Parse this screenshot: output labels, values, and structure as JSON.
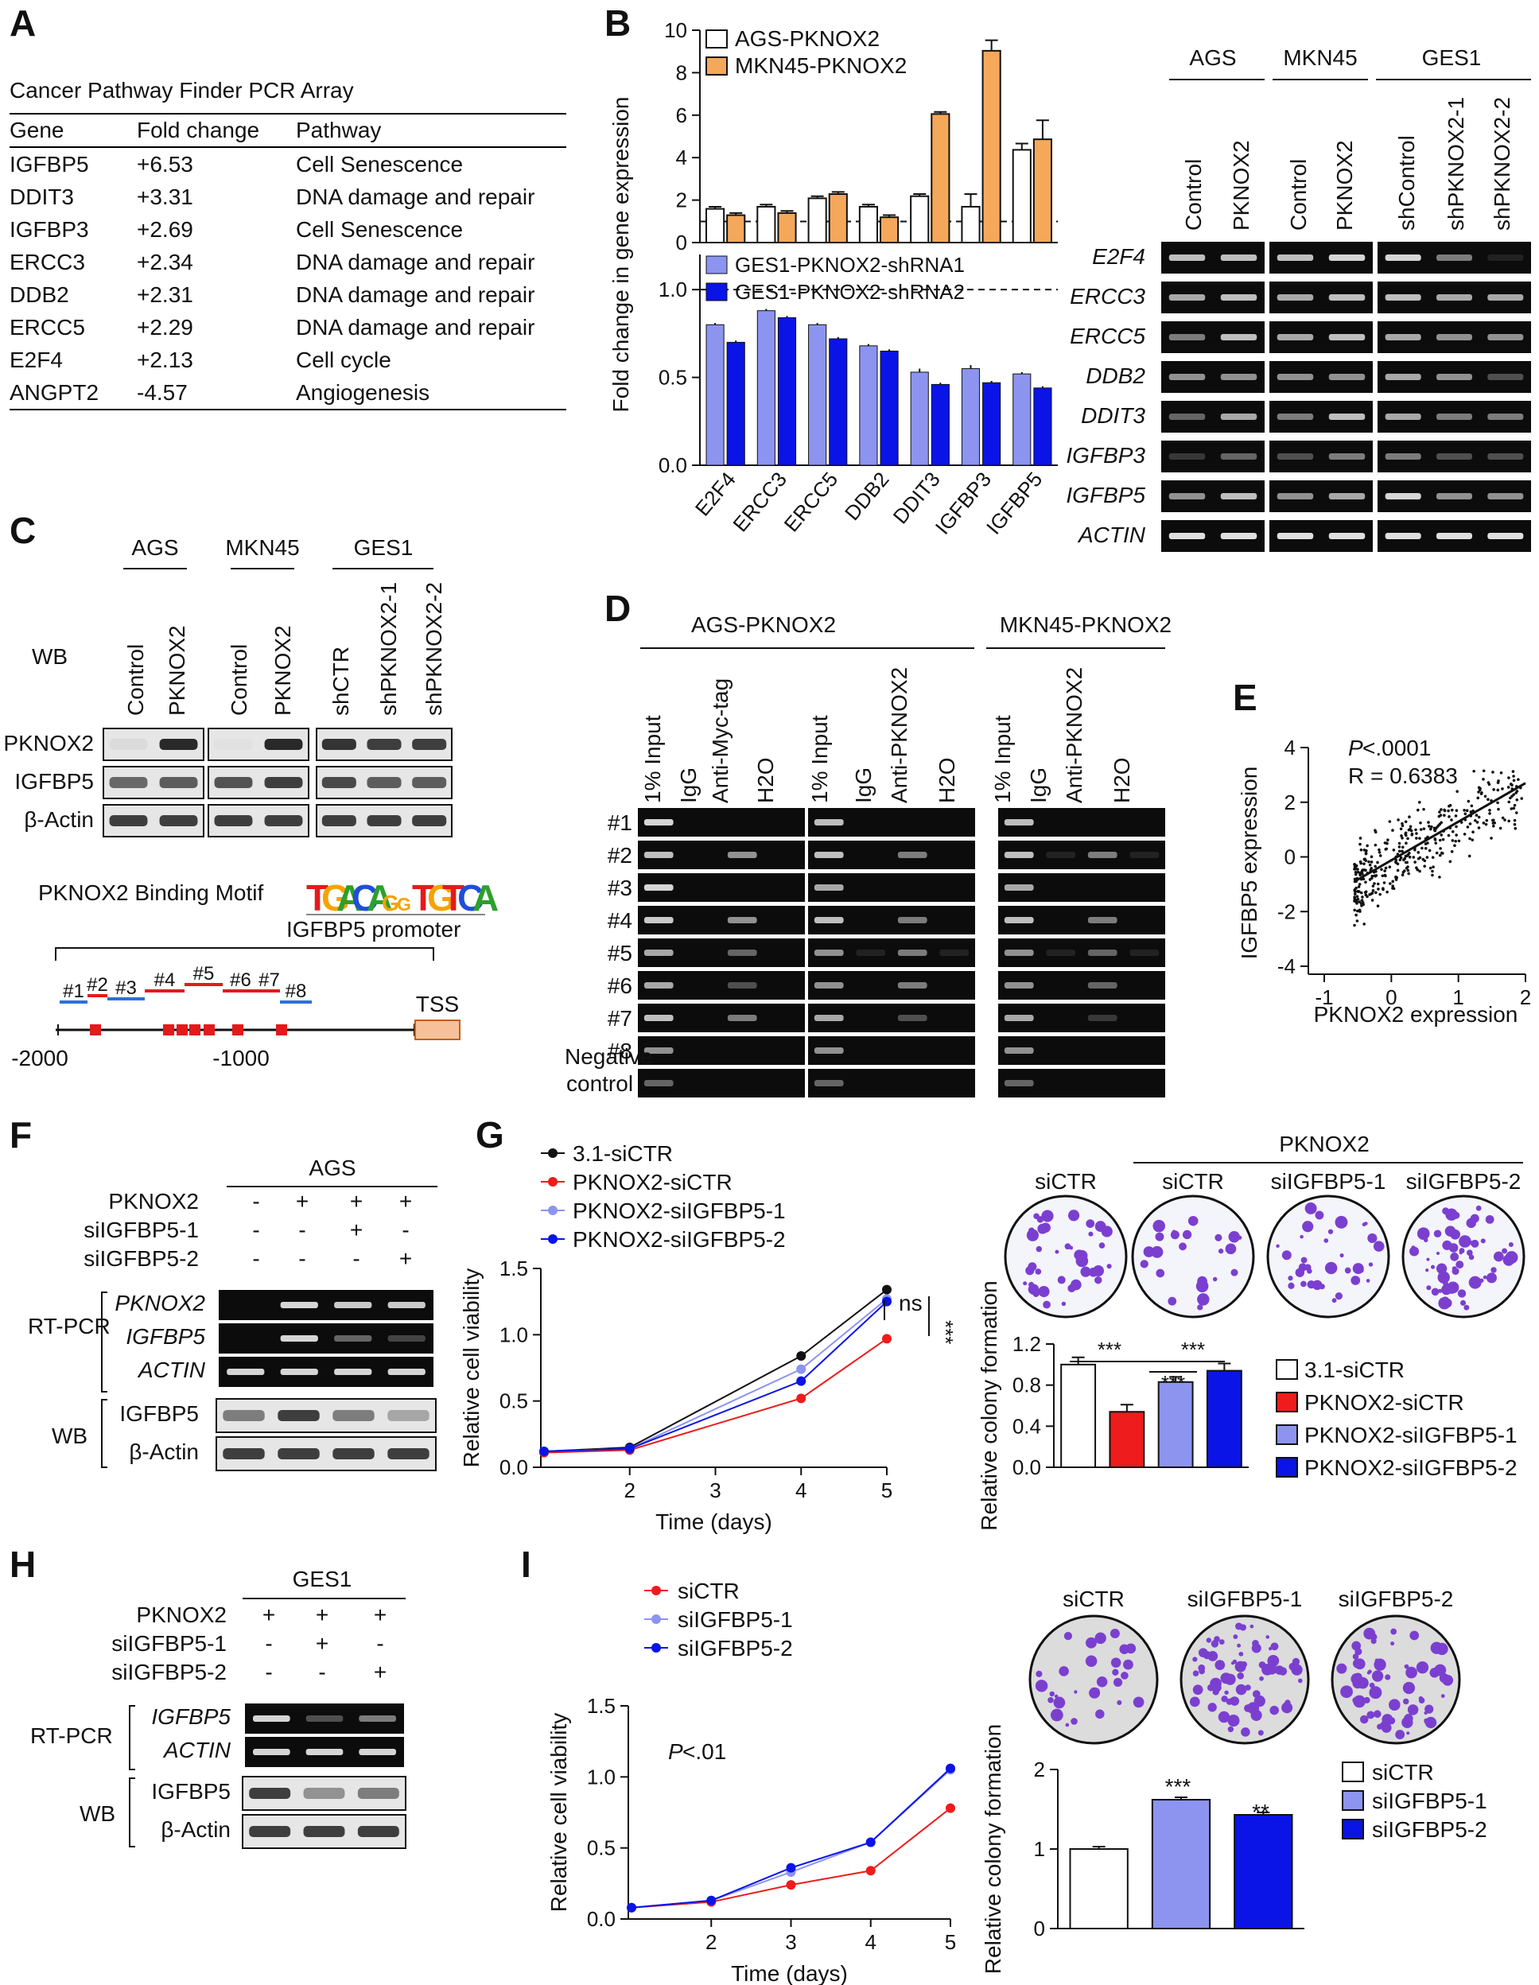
{
  "panels": {
    "A": "A",
    "B": "B",
    "C": "C",
    "D": "D",
    "E": "E",
    "F": "F",
    "G": "G",
    "H": "H",
    "I": "I"
  },
  "panelA": {
    "title": "Cancer Pathway Finder PCR Array",
    "headers": [
      "Gene",
      "Fold change",
      "Pathway"
    ],
    "rows": [
      [
        "IGFBP5",
        "+6.53",
        "Cell Senescence"
      ],
      [
        "DDIT3",
        "+3.31",
        "DNA damage and repair"
      ],
      [
        "IGFBP3",
        "+2.69",
        "Cell Senescence"
      ],
      [
        "ERCC3",
        "+2.34",
        "DNA damage and repair"
      ],
      [
        "DDB2",
        "+2.31",
        "DNA damage and repair"
      ],
      [
        "ERCC5",
        "+2.29",
        "DNA damage and repair"
      ],
      [
        "E2F4",
        "+2.13",
        "Cell cycle"
      ],
      [
        "ANGPT2",
        "-4.57",
        "Angiogenesis"
      ]
    ]
  },
  "colors": {
    "orange": "#f5a85a",
    "lightblue": "#8c94f0",
    "blue": "#0a14e6",
    "red": "#ee1c1c",
    "black": "#111111",
    "gel": "#0c0c0c",
    "band": "#e8e8e8"
  },
  "chart_data": [
    {
      "id": "B-top",
      "type": "bar",
      "ylabel": "Fold change in gene expression",
      "categories": [
        "E2F4",
        "ERCC3",
        "ERCC5",
        "DDB2",
        "DDIT3",
        "IGFBP3",
        "IGFBP5"
      ],
      "ylim": [
        0,
        10
      ],
      "yticks": [
        "0",
        "2",
        "4",
        "6",
        "8",
        "10"
      ],
      "series": [
        {
          "name": "AGS-PKNOX2",
          "values": [
            1.6,
            1.7,
            2.1,
            1.7,
            2.2,
            1.7,
            4.4
          ],
          "errors": [
            0.1,
            0.1,
            0.1,
            0.1,
            0.1,
            0.6,
            0.3
          ]
        },
        {
          "name": "MKN45-PKNOX2",
          "values": [
            1.3,
            1.4,
            2.3,
            1.2,
            6.1,
            9.1,
            4.9
          ],
          "errors": [
            0.1,
            0.1,
            0.1,
            0.1,
            0.1,
            0.5,
            0.9
          ]
        }
      ]
    },
    {
      "id": "B-bottom",
      "type": "bar",
      "categories": [
        "E2F4",
        "ERCC3",
        "ERCC5",
        "DDB2",
        "DDIT3",
        "IGFBP3",
        "IGFBP5"
      ],
      "ylim": [
        0,
        1.2
      ],
      "yticks": [
        "0.0",
        "0.5",
        "1.0"
      ],
      "series": [
        {
          "name": "GES1-PKNOX2-shRNA1",
          "values": [
            0.8,
            0.88,
            0.8,
            0.68,
            0.53,
            0.55,
            0.52
          ],
          "errors": [
            0.01,
            0.01,
            0.01,
            0.01,
            0.02,
            0.02,
            0.01
          ]
        },
        {
          "name": "GES1-PKNOX2-shRNA2",
          "values": [
            0.7,
            0.84,
            0.72,
            0.65,
            0.46,
            0.47,
            0.44
          ],
          "errors": [
            0.01,
            0.01,
            0.01,
            0.01,
            0.01,
            0.01,
            0.01
          ]
        }
      ]
    },
    {
      "id": "E",
      "type": "scatter",
      "xlabel": "PKNOX2 expression",
      "ylabel": "IGFBP5 expression",
      "xlim": [
        -1,
        2
      ],
      "ylim": [
        -4,
        4
      ],
      "xticks": [
        "-1",
        "0",
        "1",
        "2"
      ],
      "yticks": [
        "-4",
        "-2",
        "0",
        "2",
        "4"
      ],
      "annotation_p": "P",
      "annotation_p_rest": " <.0001",
      "annotation_r": "R = 0.6383",
      "fit": {
        "x": [
          -0.55,
          2
        ],
        "y": [
          -0.9,
          2.7
        ]
      }
    },
    {
      "id": "G-line",
      "type": "line",
      "xlabel": "Time (days)",
      "ylabel": "Relative cell viability",
      "x": [
        1,
        2,
        4,
        5
      ],
      "ylim": [
        0,
        1.5
      ],
      "yticks": [
        "0.0",
        "0.5",
        "1.0",
        "1.5"
      ],
      "xticks": [
        "2",
        "3",
        "4",
        "5"
      ],
      "series": [
        {
          "name": "3.1-siCTR",
          "values": [
            0.12,
            0.15,
            0.84,
            1.34
          ]
        },
        {
          "name": "PKNOX2-siCTR",
          "values": [
            0.11,
            0.13,
            0.52,
            0.97
          ]
        },
        {
          "name": "PKNOX2-siIGFBP5-1",
          "values": [
            0.12,
            0.14,
            0.74,
            1.27
          ]
        },
        {
          "name": "PKNOX2-siIGFBP5-2",
          "values": [
            0.12,
            0.14,
            0.65,
            1.25
          ]
        }
      ],
      "annotation_ns": "ns",
      "annotation_sig": "***"
    },
    {
      "id": "G-bar",
      "type": "bar",
      "ylabel": "Relative colony formation",
      "categories": [
        "3.1-siCTR",
        "PKNOX2-siCTR",
        "PKNOX2-siIGFBP5-1",
        "PKNOX2-siIGFBP5-2"
      ],
      "values": [
        1.0,
        0.54,
        0.83,
        0.94
      ],
      "errors": [
        0.07,
        0.07,
        0.05,
        0.07
      ],
      "ylim": [
        0,
        1.2
      ],
      "yticks": [
        "0.0",
        "0.4",
        "0.8",
        "1.2"
      ],
      "sig": [
        "***",
        "***",
        "***"
      ]
    },
    {
      "id": "I-line",
      "type": "line",
      "xlabel": "Time (days)",
      "ylabel": "Relative cell viability",
      "x": [
        1,
        2,
        3,
        4,
        5
      ],
      "ylim": [
        0,
        1.5
      ],
      "yticks": [
        "0.0",
        "0.5",
        "1.0",
        "1.5"
      ],
      "xticks": [
        "2",
        "3",
        "4",
        "5"
      ],
      "series": [
        {
          "name": "siCTR",
          "values": [
            0.08,
            0.12,
            0.24,
            0.34,
            0.78
          ]
        },
        {
          "name": "siIGFBP5-1",
          "values": [
            0.08,
            0.13,
            0.33,
            0.54,
            1.05
          ]
        },
        {
          "name": "siIGFBP5-2",
          "values": [
            0.08,
            0.13,
            0.36,
            0.54,
            1.06
          ]
        }
      ],
      "annotation_p": "P",
      "annotation_p_rest": " <.01"
    },
    {
      "id": "I-bar",
      "type": "bar",
      "ylabel": "Relative colony formation",
      "categories": [
        "siCTR",
        "siIGFBP5-1",
        "siIGFBP5-2"
      ],
      "values": [
        1.0,
        1.62,
        1.43
      ],
      "errors": [
        0.03,
        0.03,
        0.03
      ],
      "ylim": [
        0,
        2
      ],
      "yticks": [
        "0",
        "1",
        "2"
      ],
      "sig": [
        "",
        "***",
        "**"
      ]
    }
  ],
  "panelB_gel": {
    "groups": [
      "AGS",
      "MKN45",
      "GES1"
    ],
    "lanes": [
      "Control",
      "PKNOX2",
      "Control",
      "PKNOX2",
      "shControl",
      "shPKNOX2-1",
      "shPKNOX2-2"
    ],
    "genes": [
      "E2F4",
      "ERCC3",
      "ERCC5",
      "DDB2",
      "DDIT3",
      "IGFBP3",
      "IGFBP5",
      "ACTIN"
    ]
  },
  "panelC": {
    "wb_label": "WB",
    "groups": [
      "AGS",
      "MKN45",
      "GES1"
    ],
    "lanes": [
      "Control",
      "PKNOX2",
      "Control",
      "PKNOX2",
      "shCTR",
      "shPKNOX2-1",
      "shPKNOX2-2"
    ],
    "rows": [
      "PKNOX2",
      "IGFBP5",
      "β-Actin"
    ],
    "motif_label": "PKNOX2 Binding Motif",
    "motif": "TGACAGGTGTCA",
    "promoter_title": "IGFBP5 promoter",
    "sites": [
      "#1",
      "#2",
      "#3",
      "#4",
      "#5",
      "#6",
      "#7",
      "#8"
    ],
    "tss": "TSS",
    "pos_a": "-2000",
    "pos_b": "-1000"
  },
  "panelD": {
    "groups": [
      "AGS-PKNOX2",
      "MKN45-PKNOX2"
    ],
    "lanes_a": [
      "1% Input",
      "IgG",
      "Anti-Myc-tag",
      "H2O",
      "1% Input",
      "IgG",
      "Anti-PKNOX2",
      "H2O"
    ],
    "lanes_b": [
      "1% Input",
      "IgG",
      "Anti-PKNOX2",
      "H2O"
    ],
    "rows": [
      "#1",
      "#2",
      "#3",
      "#4",
      "#5",
      "#6",
      "#7",
      "#8"
    ],
    "neg1": "Negative",
    "neg2": "control"
  },
  "panelF": {
    "cell": "AGS",
    "cond_labels": [
      "PKNOX2",
      "siIGFBP5-1",
      "siIGFBP5-2"
    ],
    "cond": [
      [
        "-",
        "+",
        "+",
        "+"
      ],
      [
        "-",
        "-",
        "+",
        "-"
      ],
      [
        "-",
        "-",
        "-",
        "+"
      ]
    ],
    "rt": "RT-PCR",
    "wb": "WB",
    "rt_rows": [
      "PKNOX2",
      "IGFBP5",
      "ACTIN"
    ],
    "wb_rows": [
      "IGFBP5",
      "β-Actin"
    ]
  },
  "panelG": {
    "group": "PKNOX2",
    "dishes": [
      "siCTR",
      "siCTR",
      "siIGFBP5-1",
      "siIGFBP5-2"
    ]
  },
  "panelH": {
    "cell": "GES1",
    "cond_labels": [
      "PKNOX2",
      "siIGFBP5-1",
      "siIGFBP5-2"
    ],
    "cond": [
      [
        "+",
        "+",
        "+"
      ],
      [
        "-",
        "+",
        "-"
      ],
      [
        "-",
        "-",
        "+"
      ]
    ],
    "rt": "RT-PCR",
    "wb": "WB",
    "rt_rows": [
      "IGFBP5",
      "ACTIN"
    ],
    "wb_rows": [
      "IGFBP5",
      "β-Actin"
    ]
  },
  "panelI": {
    "dishes": [
      "siCTR",
      "siIGFBP5-1",
      "siIGFBP5-2"
    ]
  }
}
